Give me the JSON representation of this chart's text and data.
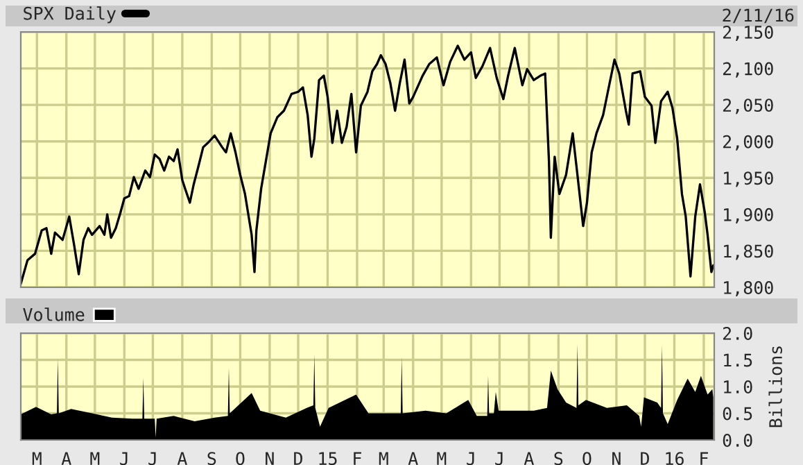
{
  "chart_data": [
    {
      "type": "line",
      "legend": "top left",
      "grid": true,
      "tick_labels": "y",
      "xlim": [
        "2014-02-12",
        "2016-02-12"
      ],
      "ylim": [
        1800,
        2150
      ],
      "yticks": [
        {
          "value": 1800,
          "label": "1,800"
        },
        {
          "value": 1850,
          "label": "1,850"
        },
        {
          "value": 1900,
          "label": "1,900"
        },
        {
          "value": 1950,
          "label": "1,950"
        },
        {
          "value": 2000,
          "label": "2,000"
        },
        {
          "value": 2050,
          "label": "2,050"
        },
        {
          "value": 2100,
          "label": "2,100"
        },
        {
          "value": 2150,
          "label": "2,150"
        }
      ],
      "xticks": [
        {
          "value": "2014-03-01",
          "label": null
        },
        {
          "value": "2014-04-01",
          "label": null
        },
        {
          "value": "2014-05-01",
          "label": null
        },
        {
          "value": "2014-06-01",
          "label": null
        },
        {
          "value": "2014-07-01",
          "label": null
        },
        {
          "value": "2014-08-01",
          "label": null
        },
        {
          "value": "2014-09-01",
          "label": null
        },
        {
          "value": "2014-10-01",
          "label": null
        },
        {
          "value": "2014-11-01",
          "label": null
        },
        {
          "value": "2014-12-01",
          "label": null
        },
        {
          "value": "2015-01-01",
          "label": null
        },
        {
          "value": "2015-02-01",
          "label": null
        },
        {
          "value": "2015-03-01",
          "label": null
        },
        {
          "value": "2015-04-01",
          "label": null
        },
        {
          "value": "2015-05-01",
          "label": null
        },
        {
          "value": "2015-06-01",
          "label": null
        },
        {
          "value": "2015-07-01",
          "label": null
        },
        {
          "value": "2015-08-01",
          "label": null
        },
        {
          "value": "2015-09-01",
          "label": null
        },
        {
          "value": "2015-10-01",
          "label": null
        },
        {
          "value": "2015-11-01",
          "label": null
        },
        {
          "value": "2015-12-01",
          "label": null
        },
        {
          "value": "2016-01-01",
          "label": null
        },
        {
          "value": "2016-02-01",
          "label": null
        }
      ],
      "annotations": [
        "2/11/16"
      ],
      "series": [
        {
          "name": "SPX Daily",
          "color": "#000000",
          "x": [
            "2014-02-12",
            "2014-02-19",
            "2014-02-27",
            "2014-03-06",
            "2014-03-11",
            "2014-03-16",
            "2014-03-20",
            "2014-03-28",
            "2014-04-04",
            "2014-04-09",
            "2014-04-14",
            "2014-04-19",
            "2014-04-24",
            "2014-04-28",
            "2014-05-06",
            "2014-05-11",
            "2014-05-14",
            "2014-05-18",
            "2014-05-23",
            "2014-05-28",
            "2014-06-01",
            "2014-06-06",
            "2014-06-11",
            "2014-06-16",
            "2014-06-23",
            "2014-06-28",
            "2014-07-03",
            "2014-07-08",
            "2014-07-13",
            "2014-07-18",
            "2014-07-23",
            "2014-07-27",
            "2014-08-01",
            "2014-08-04",
            "2014-08-09",
            "2014-08-13",
            "2014-08-18",
            "2014-08-23",
            "2014-08-28",
            "2014-09-04",
            "2014-09-12",
            "2014-09-16",
            "2014-09-21",
            "2014-09-26",
            "2014-10-01",
            "2014-10-06",
            "2014-10-13",
            "2014-10-16",
            "2014-10-18",
            "2014-10-23",
            "2014-10-28",
            "2014-11-02",
            "2014-11-09",
            "2014-11-16",
            "2014-11-24",
            "2014-12-01",
            "2014-12-06",
            "2014-12-11",
            "2014-12-15",
            "2014-12-18",
            "2014-12-23",
            "2014-12-28",
            "2015-01-01",
            "2015-01-06",
            "2015-01-11",
            "2015-01-16",
            "2015-01-21",
            "2015-01-26",
            "2015-01-31",
            "2015-02-05",
            "2015-02-12",
            "2015-02-17",
            "2015-02-22",
            "2015-02-26",
            "2015-03-03",
            "2015-03-08",
            "2015-03-13",
            "2015-03-18",
            "2015-03-23",
            "2015-03-28",
            "2015-04-01",
            "2015-04-11",
            "2015-04-18",
            "2015-04-26",
            "2015-05-03",
            "2015-05-10",
            "2015-05-18",
            "2015-05-25",
            "2015-06-01",
            "2015-06-06",
            "2015-06-13",
            "2015-06-21",
            "2015-06-28",
            "2015-07-05",
            "2015-07-10",
            "2015-07-17",
            "2015-07-25",
            "2015-07-30",
            "2015-08-06",
            "2015-08-13",
            "2015-08-18",
            "2015-08-22",
            "2015-08-24",
            "2015-08-28",
            "2015-09-02",
            "2015-09-09",
            "2015-09-16",
            "2015-09-21",
            "2015-09-27",
            "2015-10-01",
            "2015-10-06",
            "2015-10-11",
            "2015-10-18",
            "2015-10-23",
            "2015-10-30",
            "2015-11-04",
            "2015-11-11",
            "2015-11-14",
            "2015-11-18",
            "2015-11-26",
            "2015-12-01",
            "2015-12-08",
            "2015-12-12",
            "2015-12-18",
            "2015-12-25",
            "2015-12-30",
            "2016-01-04",
            "2016-01-09",
            "2016-01-13",
            "2016-01-18",
            "2016-01-23",
            "2016-01-28",
            "2016-02-02",
            "2016-02-05",
            "2016-02-09",
            "2016-02-11"
          ],
          "values": [
            1805,
            1837,
            1846,
            1878,
            1881,
            1846,
            1875,
            1865,
            1897,
            1859,
            1818,
            1865,
            1881,
            1872,
            1884,
            1872,
            1900,
            1868,
            1881,
            1903,
            1922,
            1925,
            1951,
            1935,
            1960,
            1951,
            1982,
            1976,
            1960,
            1979,
            1973,
            1989,
            1947,
            1935,
            1916,
            1941,
            1966,
            1992,
            1998,
            2008,
            1992,
            1985,
            2011,
            1985,
            1954,
            1928,
            1872,
            1821,
            1878,
            1935,
            1973,
            2011,
            2033,
            2042,
            2065,
            2068,
            2074,
            2036,
            1979,
            2004,
            2084,
            2090,
            2061,
            1998,
            2042,
            1998,
            2020,
            2065,
            1985,
            2049,
            2068,
            2096,
            2106,
            2118,
            2106,
            2080,
            2042,
            2080,
            2112,
            2052,
            2061,
            2090,
            2106,
            2115,
            2077,
            2109,
            2131,
            2112,
            2122,
            2087,
            2103,
            2128,
            2087,
            2058,
            2090,
            2128,
            2077,
            2099,
            2084,
            2090,
            2093,
            1973,
            1868,
            1979,
            1928,
            1954,
            2011,
            1954,
            1884,
            1916,
            1985,
            2011,
            2036,
            2068,
            2112,
            2093,
            2042,
            2023,
            2093,
            2096,
            2061,
            2049,
            1998,
            2055,
            2068,
            2046,
            2004,
            1928,
            1897,
            1815,
            1897,
            1941,
            1903,
            1872,
            1821,
            1830
          ]
        }
      ]
    },
    {
      "type": "area",
      "legend": "top left",
      "grid": true,
      "xlim": [
        "2014-02-12",
        "2016-02-12"
      ],
      "ylim": [
        0,
        2
      ],
      "ylabel": "Billions",
      "yticks": [
        {
          "value": 0,
          "label": "0.0"
        },
        {
          "value": 0.5,
          "label": "0.5"
        },
        {
          "value": 1,
          "label": "1.0"
        },
        {
          "value": 1.5,
          "label": "1.5"
        },
        {
          "value": 2,
          "label": "2.0"
        }
      ],
      "xticks": [
        {
          "value": "2014-03-01",
          "label": "M"
        },
        {
          "value": "2014-04-01",
          "label": "A"
        },
        {
          "value": "2014-05-01",
          "label": "M"
        },
        {
          "value": "2014-06-01",
          "label": "J"
        },
        {
          "value": "2014-07-01",
          "label": "J"
        },
        {
          "value": "2014-08-01",
          "label": "A"
        },
        {
          "value": "2014-09-01",
          "label": "S"
        },
        {
          "value": "2014-10-01",
          "label": "O"
        },
        {
          "value": "2014-11-01",
          "label": "N"
        },
        {
          "value": "2014-12-01",
          "label": "D"
        },
        {
          "value": "2015-01-01",
          "label": "15"
        },
        {
          "value": "2015-02-01",
          "label": "F"
        },
        {
          "value": "2015-03-01",
          "label": "M"
        },
        {
          "value": "2015-04-01",
          "label": "A"
        },
        {
          "value": "2015-05-01",
          "label": "M"
        },
        {
          "value": "2015-06-01",
          "label": "J"
        },
        {
          "value": "2015-07-01",
          "label": "J"
        },
        {
          "value": "2015-08-01",
          "label": "A"
        },
        {
          "value": "2015-09-01",
          "label": "S"
        },
        {
          "value": "2015-10-01",
          "label": "O"
        },
        {
          "value": "2015-11-01",
          "label": "N"
        },
        {
          "value": "2015-12-01",
          "label": "D"
        },
        {
          "value": "2016-01-01",
          "label": "16"
        },
        {
          "value": "2016-02-01",
          "label": "F"
        }
      ],
      "series": [
        {
          "name": "Volume",
          "color": "#000000",
          "x": [
            "2014-02-12",
            "2014-02-28",
            "2014-03-16",
            "2014-03-22",
            "2014-03-23",
            "2014-03-24",
            "2014-04-06",
            "2014-04-28",
            "2014-05-19",
            "2014-06-10",
            "2014-06-20",
            "2014-06-21",
            "2014-06-22",
            "2014-07-03",
            "2014-07-04",
            "2014-07-05",
            "2014-07-23",
            "2014-08-14",
            "2014-09-04",
            "2014-09-18",
            "2014-09-19",
            "2014-09-20",
            "2014-10-13",
            "2014-10-22",
            "2014-11-18",
            "2014-12-10",
            "2014-12-17",
            "2014-12-18",
            "2014-12-19",
            "2014-12-24",
            "2015-01-02",
            "2015-01-31",
            "2015-02-13",
            "2015-03-07",
            "2015-03-19",
            "2015-03-20",
            "2015-03-21",
            "2015-04-14",
            "2015-05-06",
            "2015-05-29",
            "2015-06-07",
            "2015-06-18",
            "2015-06-19",
            "2015-06-20",
            "2015-06-25",
            "2015-06-27",
            "2015-06-30",
            "2015-07-15",
            "2015-08-06",
            "2015-08-20",
            "2015-08-24",
            "2015-08-31",
            "2015-09-09",
            "2015-09-20",
            "2015-09-21",
            "2015-09-22",
            "2015-09-30",
            "2015-10-22",
            "2015-11-12",
            "2015-11-25",
            "2015-11-27",
            "2015-11-30",
            "2015-12-14",
            "2015-12-18",
            "2015-12-19",
            "2015-12-20",
            "2015-12-25",
            "2016-01-04",
            "2016-01-15",
            "2016-01-23",
            "2016-01-29",
            "2016-02-05",
            "2016-02-10",
            "2016-02-11"
          ],
          "values": [
            0.48,
            0.62,
            0.48,
            0.5,
            1.52,
            0.5,
            0.58,
            0.5,
            0.42,
            0.4,
            0.4,
            1.17,
            0.4,
            0.4,
            0.05,
            0.4,
            0.45,
            0.35,
            0.42,
            0.45,
            1.35,
            0.5,
            0.88,
            0.55,
            0.42,
            0.6,
            0.65,
            1.6,
            0.6,
            0.25,
            0.6,
            0.85,
            0.5,
            0.5,
            0.5,
            1.55,
            0.5,
            0.55,
            0.5,
            0.75,
            0.45,
            0.45,
            1.2,
            0.5,
            0.5,
            0.9,
            0.55,
            0.55,
            0.55,
            0.6,
            1.3,
            0.95,
            0.7,
            0.6,
            1.8,
            0.65,
            0.75,
            0.6,
            0.65,
            0.45,
            0.25,
            0.8,
            0.7,
            0.6,
            1.78,
            0.5,
            0.3,
            0.75,
            1.15,
            0.9,
            1.2,
            0.85,
            0.95,
            0.8
          ]
        }
      ]
    }
  ]
}
